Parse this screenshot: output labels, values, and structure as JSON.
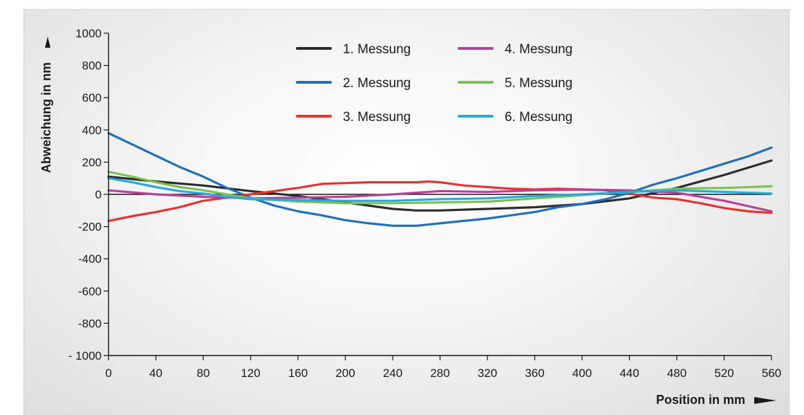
{
  "chart_data": {
    "type": "line",
    "xlabel": "Position in mm",
    "ylabel": "Abweichung in nm",
    "xlim": [
      0,
      560
    ],
    "ylim": [
      -1000,
      1000
    ],
    "x_ticks": [
      "0",
      "40",
      "80",
      "120",
      "160",
      "200",
      "240",
      "280",
      "320",
      "360",
      "400",
      "440",
      "480",
      "520",
      "560"
    ],
    "y_ticks": [
      "1000",
      "800",
      "600",
      "400",
      "200",
      "0",
      "-200",
      "-400",
      "-600",
      "-800",
      "- 1000"
    ],
    "grid": false,
    "legend_position": "top-center",
    "series": [
      {
        "name": "1. Messung",
        "color": "#2b2b2b",
        "x": [
          0,
          40,
          80,
          120,
          160,
          200,
          240,
          260,
          280,
          320,
          360,
          400,
          440,
          480,
          520,
          560
        ],
        "y": [
          110,
          80,
          55,
          20,
          -10,
          -50,
          -90,
          -100,
          -100,
          -90,
          -80,
          -60,
          -25,
          40,
          120,
          210
        ]
      },
      {
        "name": "2. Messung",
        "color": "#1f6fba",
        "x": [
          0,
          20,
          40,
          60,
          80,
          100,
          120,
          140,
          160,
          180,
          200,
          220,
          240,
          260,
          280,
          300,
          320,
          340,
          360,
          380,
          400,
          420,
          440,
          460,
          480,
          500,
          520,
          540,
          560
        ],
        "y": [
          380,
          310,
          240,
          170,
          110,
          40,
          -20,
          -70,
          -105,
          -130,
          -160,
          -180,
          -195,
          -195,
          -180,
          -165,
          -150,
          -130,
          -110,
          -80,
          -60,
          -30,
          10,
          60,
          100,
          145,
          190,
          235,
          290
        ]
      },
      {
        "name": "3. Messung",
        "color": "#e8322d",
        "x": [
          0,
          20,
          40,
          60,
          80,
          100,
          120,
          140,
          160,
          180,
          200,
          220,
          240,
          260,
          270,
          280,
          300,
          320,
          340,
          360,
          380,
          400,
          420,
          440,
          460,
          480,
          500,
          520,
          540,
          560
        ],
        "y": [
          -165,
          -135,
          -110,
          -80,
          -40,
          -20,
          0,
          20,
          40,
          65,
          70,
          75,
          75,
          75,
          80,
          75,
          55,
          45,
          35,
          30,
          35,
          30,
          25,
          5,
          -20,
          -30,
          -55,
          -85,
          -105,
          -115
        ]
      },
      {
        "name": "4. Messung",
        "color": "#b83f9a",
        "x": [
          0,
          40,
          80,
          120,
          160,
          200,
          240,
          280,
          320,
          360,
          400,
          440,
          480,
          520,
          560
        ],
        "y": [
          25,
          0,
          -15,
          -25,
          -20,
          -15,
          0,
          20,
          15,
          25,
          30,
          25,
          10,
          -40,
          -105
        ]
      },
      {
        "name": "5. Messung",
        "color": "#7dc04f",
        "x": [
          0,
          20,
          40,
          60,
          80,
          100,
          120,
          160,
          200,
          240,
          280,
          320,
          360,
          400,
          440,
          480,
          520,
          560
        ],
        "y": [
          140,
          110,
          75,
          45,
          25,
          0,
          -25,
          -45,
          -55,
          -55,
          -50,
          -45,
          -25,
          -5,
          15,
          35,
          40,
          50
        ]
      },
      {
        "name": "6. Messung",
        "color": "#2aa9e0",
        "x": [
          0,
          20,
          40,
          60,
          80,
          100,
          120,
          160,
          200,
          240,
          280,
          320,
          360,
          400,
          440,
          480,
          520,
          560
        ],
        "y": [
          100,
          75,
          45,
          20,
          5,
          -15,
          -30,
          -35,
          -40,
          -40,
          -30,
          -25,
          -10,
          0,
          15,
          25,
          15,
          5
        ]
      }
    ]
  }
}
